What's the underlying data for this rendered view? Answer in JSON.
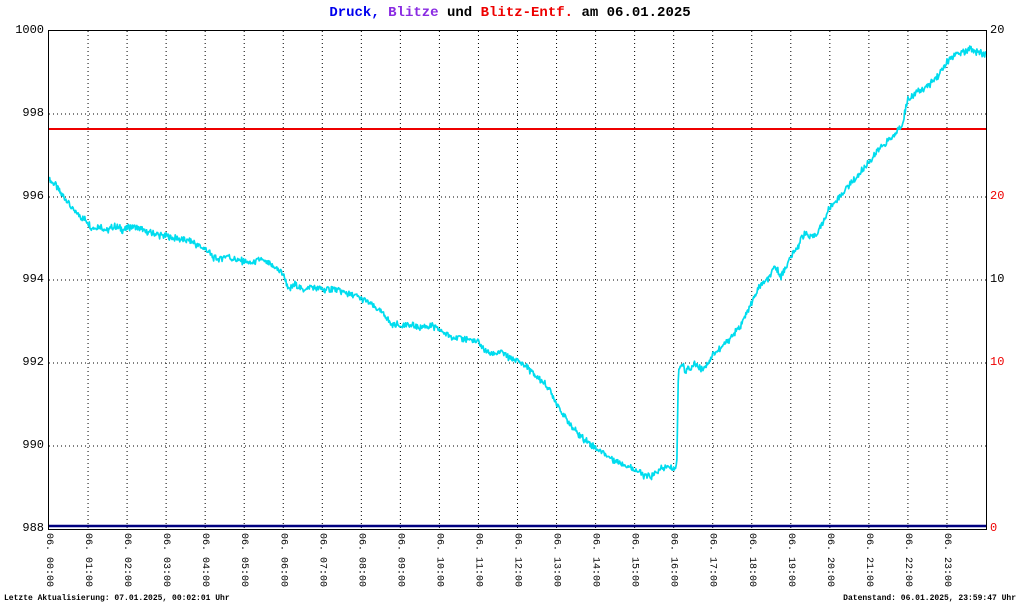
{
  "title": {
    "parts": [
      {
        "text": "Druck,",
        "color": "#0000ee"
      },
      {
        "text": "Blitze",
        "color": "#8a2be2"
      },
      {
        "text": "und",
        "color": "#000000"
      },
      {
        "text": "Blitz-Entf.",
        "color": "#ee0000"
      },
      {
        "text": "am 06.01.2025",
        "color": "#000000"
      }
    ]
  },
  "footer": {
    "left": "Letzte Aktualisierung: 07.01.2025, 00:02:01 Uhr",
    "right": "Datenstand: 06.01.2025, 23:59:47 Uhr"
  },
  "axes": {
    "left_ticks": [
      {
        "label": "1000",
        "value": 1000
      },
      {
        "label": "998",
        "value": 998
      },
      {
        "label": "996",
        "value": 996
      },
      {
        "label": "994",
        "value": 994
      },
      {
        "label": "992",
        "value": 992
      },
      {
        "label": "990",
        "value": 990
      },
      {
        "label": "988",
        "value": 988
      }
    ],
    "right_ticks": [
      {
        "label": "20",
        "value": 20,
        "axis": "black",
        "color": "#000000"
      },
      {
        "label": "20",
        "value": 20,
        "axis": "red",
        "color": "#ee0000"
      },
      {
        "label": "10",
        "value": 10,
        "axis": "black",
        "color": "#000000"
      },
      {
        "label": "10",
        "value": 10,
        "axis": "red",
        "color": "#ee0000"
      },
      {
        "label": "0",
        "value": 0,
        "axis": "red",
        "color": "#ee0000"
      }
    ],
    "x_labels": [
      "06. 00:00",
      "06. 01:00",
      "06. 02:00",
      "06. 03:00",
      "06. 04:00",
      "06. 05:00",
      "06. 06:00",
      "06. 07:00",
      "06. 08:00",
      "06. 09:00",
      "06. 10:00",
      "06. 11:00",
      "06. 12:00",
      "06. 13:00",
      "06. 14:00",
      "06. 15:00",
      "06. 16:00",
      "06. 17:00",
      "06. 18:00",
      "06. 19:00",
      "06. 20:00",
      "06. 21:00",
      "06. 22:00",
      "06. 23:00"
    ]
  },
  "chart_data": {
    "type": "line",
    "title": "Druck, Blitze und Blitz-Entf. am 06.01.2025",
    "grid": true,
    "x_axis": {
      "min": 0,
      "max": 24,
      "tick_interval_hours": 1
    },
    "left_axis": {
      "min": 988,
      "max": 1000,
      "ticks": [
        988,
        990,
        992,
        994,
        996,
        998,
        1000
      ],
      "grid_values": [
        990,
        992,
        994,
        996,
        998
      ]
    },
    "right_axis_black": {
      "min": 0,
      "max": 20,
      "ticks": [
        0,
        10,
        20
      ]
    },
    "right_axis_red": {
      "min": 0,
      "max": 30,
      "ticks": [
        0,
        10,
        20
      ]
    },
    "series": [
      {
        "name": "Druck",
        "color": "#00dcee",
        "axis": "left",
        "style": "noisy-line",
        "noise_amplitude": 0.07,
        "points": [
          [
            0.0,
            996.45
          ],
          [
            0.15,
            996.3
          ],
          [
            0.3,
            996.1
          ],
          [
            0.5,
            995.85
          ],
          [
            0.65,
            995.65
          ],
          [
            0.8,
            995.55
          ],
          [
            1.0,
            995.4
          ],
          [
            1.1,
            995.25
          ],
          [
            1.3,
            995.3
          ],
          [
            1.5,
            995.2
          ],
          [
            1.7,
            995.3
          ],
          [
            1.9,
            995.2
          ],
          [
            2.1,
            995.3
          ],
          [
            2.3,
            995.25
          ],
          [
            2.5,
            995.15
          ],
          [
            2.75,
            995.1
          ],
          [
            3.0,
            995.05
          ],
          [
            3.3,
            995.0
          ],
          [
            3.6,
            994.95
          ],
          [
            3.8,
            994.85
          ],
          [
            4.0,
            994.75
          ],
          [
            4.2,
            994.55
          ],
          [
            4.35,
            994.5
          ],
          [
            4.55,
            994.6
          ],
          [
            4.75,
            994.5
          ],
          [
            5.0,
            994.45
          ],
          [
            5.2,
            994.4
          ],
          [
            5.4,
            994.5
          ],
          [
            5.6,
            994.4
          ],
          [
            5.8,
            994.3
          ],
          [
            6.0,
            994.15
          ],
          [
            6.15,
            993.75
          ],
          [
            6.3,
            993.9
          ],
          [
            6.5,
            993.75
          ],
          [
            6.7,
            993.85
          ],
          [
            6.9,
            993.8
          ],
          [
            7.1,
            993.75
          ],
          [
            7.3,
            993.8
          ],
          [
            7.5,
            993.7
          ],
          [
            7.75,
            993.65
          ],
          [
            8.0,
            993.55
          ],
          [
            8.2,
            993.45
          ],
          [
            8.4,
            993.3
          ],
          [
            8.6,
            993.15
          ],
          [
            8.75,
            992.95
          ],
          [
            9.0,
            992.9
          ],
          [
            9.25,
            992.92
          ],
          [
            9.5,
            992.85
          ],
          [
            9.75,
            992.9
          ],
          [
            10.0,
            992.8
          ],
          [
            10.2,
            992.68
          ],
          [
            10.45,
            992.6
          ],
          [
            10.7,
            992.58
          ],
          [
            11.0,
            992.5
          ],
          [
            11.15,
            992.3
          ],
          [
            11.35,
            992.2
          ],
          [
            11.55,
            992.28
          ],
          [
            11.75,
            992.15
          ],
          [
            12.0,
            992.05
          ],
          [
            12.25,
            991.9
          ],
          [
            12.5,
            991.65
          ],
          [
            12.7,
            991.5
          ],
          [
            12.85,
            991.3
          ],
          [
            13.0,
            991.05
          ],
          [
            13.2,
            990.7
          ],
          [
            13.4,
            990.45
          ],
          [
            13.6,
            990.25
          ],
          [
            13.8,
            990.1
          ],
          [
            14.0,
            989.95
          ],
          [
            14.25,
            989.8
          ],
          [
            14.5,
            989.65
          ],
          [
            14.75,
            989.55
          ],
          [
            15.0,
            989.45
          ],
          [
            15.2,
            989.3
          ],
          [
            15.4,
            989.25
          ],
          [
            15.6,
            989.4
          ],
          [
            15.8,
            989.5
          ],
          [
            16.0,
            989.45
          ],
          [
            16.08,
            989.5
          ],
          [
            16.12,
            991.8
          ],
          [
            16.2,
            992.0
          ],
          [
            16.3,
            991.8
          ],
          [
            16.45,
            991.9
          ],
          [
            16.55,
            992.0
          ],
          [
            16.7,
            991.85
          ],
          [
            16.85,
            991.95
          ],
          [
            17.0,
            992.2
          ],
          [
            17.2,
            992.35
          ],
          [
            17.4,
            992.55
          ],
          [
            17.6,
            992.75
          ],
          [
            17.8,
            993.05
          ],
          [
            18.0,
            993.45
          ],
          [
            18.2,
            993.85
          ],
          [
            18.4,
            994.0
          ],
          [
            18.6,
            994.3
          ],
          [
            18.75,
            994.1
          ],
          [
            19.0,
            994.55
          ],
          [
            19.2,
            994.85
          ],
          [
            19.35,
            995.15
          ],
          [
            19.5,
            995.0
          ],
          [
            19.65,
            995.1
          ],
          [
            19.8,
            995.35
          ],
          [
            20.0,
            995.75
          ],
          [
            20.25,
            996.0
          ],
          [
            20.5,
            996.3
          ],
          [
            20.75,
            996.55
          ],
          [
            21.0,
            996.85
          ],
          [
            21.25,
            997.15
          ],
          [
            21.5,
            997.35
          ],
          [
            21.7,
            997.55
          ],
          [
            21.85,
            997.75
          ],
          [
            22.0,
            998.35
          ],
          [
            22.2,
            998.5
          ],
          [
            22.4,
            998.6
          ],
          [
            22.6,
            998.75
          ],
          [
            22.8,
            998.95
          ],
          [
            23.0,
            999.25
          ],
          [
            23.2,
            999.4
          ],
          [
            23.4,
            999.5
          ],
          [
            23.6,
            999.55
          ],
          [
            23.8,
            999.5
          ],
          [
            24.0,
            999.42
          ]
        ]
      },
      {
        "name": "Blitze",
        "color": "#000080",
        "axis": "right_black",
        "style": "line",
        "constant_value": 0
      },
      {
        "name": "Blitz-Entf.",
        "color": "#ee0000",
        "axis": "right_red",
        "style": "line",
        "constant_value": 24.1
      }
    ]
  }
}
